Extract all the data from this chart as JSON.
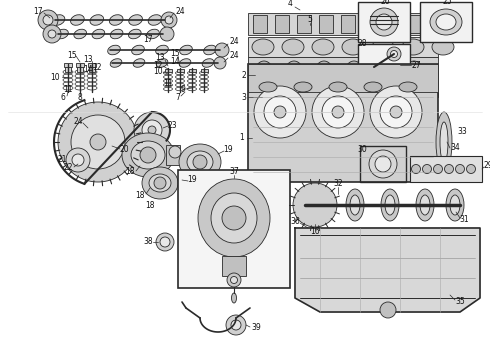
{
  "background_color": "#ffffff",
  "fig_width": 4.9,
  "fig_height": 3.6,
  "dpi": 100,
  "ec": "#2a2a2a",
  "lw": 0.6
}
